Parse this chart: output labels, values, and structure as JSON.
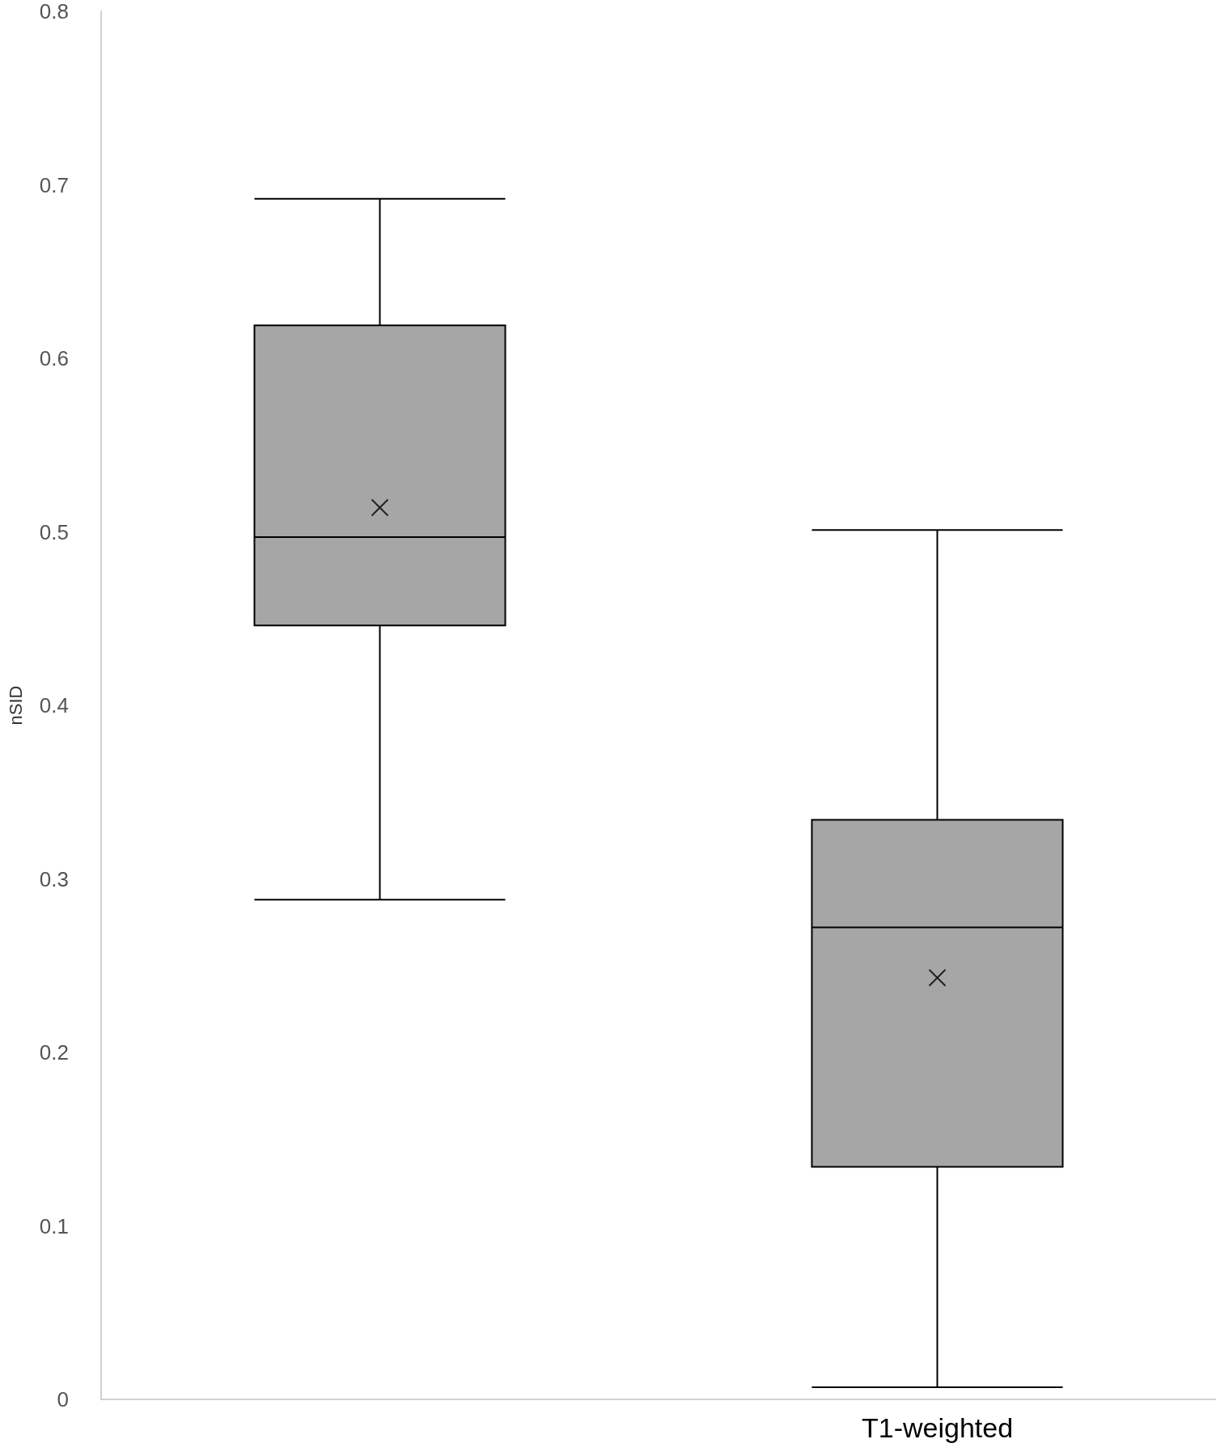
{
  "chart_data": {
    "type": "box",
    "ylabel": "nSID",
    "categories": [
      null,
      "T1-weighted"
    ],
    "color": "#a6a6a6",
    "boxes": [
      {
        "low": 0.288,
        "q1": 0.446,
        "median": 0.497,
        "q3": 0.619,
        "high": 0.692,
        "mean": 0.514
      },
      {
        "low": 0.007,
        "q1": 0.134,
        "median": 0.272,
        "q3": 0.334,
        "high": 0.501,
        "mean": 0.243
      }
    ],
    "ylim": [
      0,
      0.8
    ],
    "yticks": [
      0,
      0.1,
      0.2,
      0.3,
      0.4,
      0.5,
      0.6,
      0.7,
      0.8
    ],
    "grid": false,
    "marker": "cross"
  }
}
